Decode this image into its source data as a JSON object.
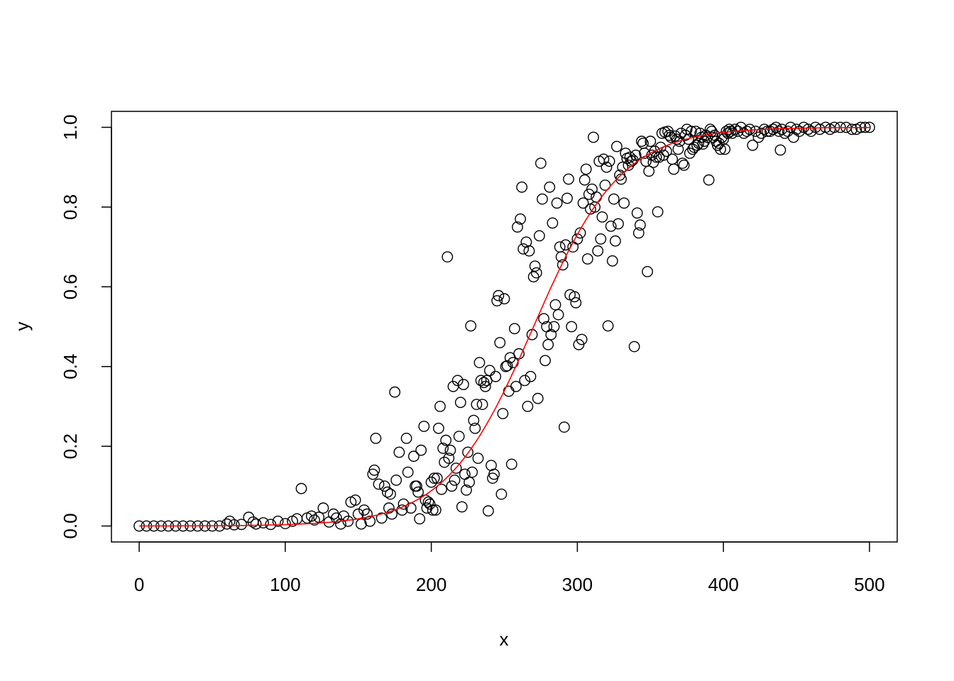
{
  "chart_data": {
    "type": "scatter",
    "title": "",
    "xlabel": "x",
    "ylabel": "y",
    "xlim": [
      -19,
      519
    ],
    "ylim": [
      -0.04,
      1.04
    ],
    "x_ticks": [
      0,
      100,
      200,
      300,
      400,
      500
    ],
    "x_tick_labels": [
      "0",
      "100",
      "200",
      "300",
      "400",
      "500"
    ],
    "y_ticks": [
      0.0,
      0.2,
      0.4,
      0.6,
      0.8,
      1.0
    ],
    "y_tick_labels": [
      "0.0",
      "0.2",
      "0.4",
      "0.6",
      "0.8",
      "1.0"
    ],
    "grid": false,
    "legend": "none",
    "series": [
      {
        "type": "scatter",
        "marker": "open-circle",
        "color": "#000000",
        "points": [
          [
            0,
            0.0
          ],
          [
            5,
            0.0
          ],
          [
            10,
            0.0
          ],
          [
            15,
            0.0
          ],
          [
            20,
            0.0
          ],
          [
            25,
            0.0
          ],
          [
            30,
            0.0
          ],
          [
            35,
            0.0
          ],
          [
            40,
            0.0
          ],
          [
            45,
            0.0
          ],
          [
            50,
            0.0
          ],
          [
            55,
            0.0
          ],
          [
            60,
            0.005
          ],
          [
            62,
            0.012
          ],
          [
            65,
            0.003
          ],
          [
            70,
            0.004
          ],
          [
            75,
            0.022
          ],
          [
            78,
            0.01
          ],
          [
            80,
            0.005
          ],
          [
            85,
            0.008
          ],
          [
            90,
            0.004
          ],
          [
            95,
            0.012
          ],
          [
            100,
            0.006
          ],
          [
            105,
            0.012
          ],
          [
            108,
            0.018
          ],
          [
            111,
            0.094
          ],
          [
            115,
            0.02
          ],
          [
            118,
            0.025
          ],
          [
            120,
            0.015
          ],
          [
            123,
            0.022
          ],
          [
            126,
            0.045
          ],
          [
            130,
            0.01
          ],
          [
            133,
            0.03
          ],
          [
            135,
            0.02
          ],
          [
            138,
            0.005
          ],
          [
            140,
            0.025
          ],
          [
            143,
            0.012
          ],
          [
            145,
            0.06
          ],
          [
            148,
            0.065
          ],
          [
            150,
            0.03
          ],
          [
            152,
            0.005
          ],
          [
            154,
            0.04
          ],
          [
            156,
            0.03
          ],
          [
            158,
            0.012
          ],
          [
            160,
            0.13
          ],
          [
            161,
            0.14
          ],
          [
            162,
            0.22
          ],
          [
            164,
            0.105
          ],
          [
            166,
            0.02
          ],
          [
            168,
            0.1
          ],
          [
            170,
            0.085
          ],
          [
            171,
            0.045
          ],
          [
            172,
            0.08
          ],
          [
            173,
            0.03
          ],
          [
            175,
            0.336
          ],
          [
            176,
            0.115
          ],
          [
            178,
            0.185
          ],
          [
            180,
            0.04
          ],
          [
            181,
            0.055
          ],
          [
            183,
            0.22
          ],
          [
            184,
            0.135
          ],
          [
            186,
            0.045
          ],
          [
            188,
            0.175
          ],
          [
            189,
            0.1
          ],
          [
            190,
            0.1
          ],
          [
            191,
            0.085
          ],
          [
            192,
            0.018
          ],
          [
            193,
            0.19
          ],
          [
            195,
            0.25
          ],
          [
            196,
            0.065
          ],
          [
            197,
            0.045
          ],
          [
            198,
            0.06
          ],
          [
            199,
            0.055
          ],
          [
            200,
            0.11
          ],
          [
            201,
            0.04
          ],
          [
            202,
            0.12
          ],
          [
            203,
            0.04
          ],
          [
            204,
            0.12
          ],
          [
            205,
            0.245
          ],
          [
            206,
            0.3
          ],
          [
            207,
            0.092
          ],
          [
            208,
            0.195
          ],
          [
            209,
            0.16
          ],
          [
            210,
            0.215
          ],
          [
            211,
            0.675
          ],
          [
            212,
            0.17
          ],
          [
            213,
            0.19
          ],
          [
            214,
            0.1
          ],
          [
            215,
            0.35
          ],
          [
            216,
            0.115
          ],
          [
            217,
            0.145
          ],
          [
            218,
            0.365
          ],
          [
            219,
            0.225
          ],
          [
            220,
            0.31
          ],
          [
            221,
            0.048
          ],
          [
            222,
            0.355
          ],
          [
            223,
            0.13
          ],
          [
            224,
            0.09
          ],
          [
            225,
            0.185
          ],
          [
            226,
            0.11
          ],
          [
            227,
            0.502
          ],
          [
            228,
            0.135
          ],
          [
            229,
            0.265
          ],
          [
            230,
            0.245
          ],
          [
            231,
            0.305
          ],
          [
            232,
            0.17
          ],
          [
            233,
            0.41
          ],
          [
            234,
            0.365
          ],
          [
            235,
            0.305
          ],
          [
            236,
            0.36
          ],
          [
            237,
            0.35
          ],
          [
            238,
            0.365
          ],
          [
            239,
            0.038
          ],
          [
            240,
            0.39
          ],
          [
            241,
            0.152
          ],
          [
            242,
            0.12
          ],
          [
            243,
            0.13
          ],
          [
            244,
            0.375
          ],
          [
            245,
            0.565
          ],
          [
            246,
            0.578
          ],
          [
            247,
            0.46
          ],
          [
            248,
            0.08
          ],
          [
            249,
            0.282
          ],
          [
            250,
            0.57
          ],
          [
            251,
            0.4
          ],
          [
            252,
            0.402
          ],
          [
            253,
            0.338
          ],
          [
            254,
            0.422
          ],
          [
            255,
            0.155
          ],
          [
            256,
            0.41
          ],
          [
            257,
            0.495
          ],
          [
            258,
            0.35
          ],
          [
            259,
            0.75
          ],
          [
            260,
            0.432
          ],
          [
            261,
            0.77
          ],
          [
            262,
            0.85
          ],
          [
            263,
            0.695
          ],
          [
            264,
            0.365
          ],
          [
            265,
            0.712
          ],
          [
            266,
            0.3
          ],
          [
            267,
            0.69
          ],
          [
            268,
            0.375
          ],
          [
            269,
            0.48
          ],
          [
            270,
            0.625
          ],
          [
            271,
            0.652
          ],
          [
            272,
            0.635
          ],
          [
            273,
            0.32
          ],
          [
            274,
            0.728
          ],
          [
            275,
            0.91
          ],
          [
            276,
            0.82
          ],
          [
            277,
            0.52
          ],
          [
            278,
            0.415
          ],
          [
            279,
            0.5
          ],
          [
            280,
            0.455
          ],
          [
            281,
            0.85
          ],
          [
            282,
            0.48
          ],
          [
            283,
            0.76
          ],
          [
            284,
            0.5
          ],
          [
            285,
            0.555
          ],
          [
            286,
            0.81
          ],
          [
            287,
            0.53
          ],
          [
            288,
            0.7
          ],
          [
            289,
            0.675
          ],
          [
            290,
            0.655
          ],
          [
            291,
            0.248
          ],
          [
            292,
            0.705
          ],
          [
            293,
            0.822
          ],
          [
            294,
            0.87
          ],
          [
            295,
            0.58
          ],
          [
            296,
            0.5
          ],
          [
            297,
            0.7
          ],
          [
            298,
            0.575
          ],
          [
            299,
            0.56
          ],
          [
            300,
            0.72
          ],
          [
            301,
            0.455
          ],
          [
            302,
            0.735
          ],
          [
            303,
            0.468
          ],
          [
            304,
            0.81
          ],
          [
            305,
            0.868
          ],
          [
            306,
            0.895
          ],
          [
            307,
            0.67
          ],
          [
            308,
            0.832
          ],
          [
            309,
            0.795
          ],
          [
            310,
            0.845
          ],
          [
            311,
            0.975
          ],
          [
            312,
            0.8
          ],
          [
            313,
            0.825
          ],
          [
            314,
            0.69
          ],
          [
            315,
            0.915
          ],
          [
            316,
            0.72
          ],
          [
            317,
            0.775
          ],
          [
            318,
            0.92
          ],
          [
            319,
            0.855
          ],
          [
            320,
            0.9
          ],
          [
            321,
            0.502
          ],
          [
            322,
            0.915
          ],
          [
            323,
            0.752
          ],
          [
            324,
            0.665
          ],
          [
            325,
            0.82
          ],
          [
            326,
            0.715
          ],
          [
            327,
            0.952
          ],
          [
            328,
            0.758
          ],
          [
            329,
            0.88
          ],
          [
            330,
            0.87
          ],
          [
            331,
            0.9
          ],
          [
            332,
            0.81
          ],
          [
            333,
            0.935
          ],
          [
            334,
            0.922
          ],
          [
            335,
            0.905
          ],
          [
            336,
            0.925
          ],
          [
            337,
            0.915
          ],
          [
            338,
            0.918
          ],
          [
            339,
            0.45
          ],
          [
            340,
            0.93
          ],
          [
            341,
            0.785
          ],
          [
            342,
            0.735
          ],
          [
            343,
            0.755
          ],
          [
            344,
            0.965
          ],
          [
            345,
            0.96
          ],
          [
            346,
            0.935
          ],
          [
            347,
            0.915
          ],
          [
            348,
            0.638
          ],
          [
            349,
            0.89
          ],
          [
            350,
            0.965
          ],
          [
            351,
            0.93
          ],
          [
            352,
            0.912
          ],
          [
            353,
            0.94
          ],
          [
            354,
            0.925
          ],
          [
            355,
            0.788
          ],
          [
            356,
            0.925
          ],
          [
            357,
            0.95
          ],
          [
            358,
            0.985
          ],
          [
            359,
            0.93
          ],
          [
            360,
            0.988
          ],
          [
            361,
            0.94
          ],
          [
            362,
            0.99
          ],
          [
            363,
            0.98
          ],
          [
            364,
            0.975
          ],
          [
            365,
            0.92
          ],
          [
            366,
            0.895
          ],
          [
            367,
            0.978
          ],
          [
            368,
            0.97
          ],
          [
            369,
            0.945
          ],
          [
            370,
            0.965
          ],
          [
            371,
            0.985
          ],
          [
            372,
            0.91
          ],
          [
            373,
            0.905
          ],
          [
            374,
            0.98
          ],
          [
            375,
            0.995
          ],
          [
            376,
            0.97
          ],
          [
            377,
            0.935
          ],
          [
            378,
            0.99
          ],
          [
            379,
            0.945
          ],
          [
            380,
            0.95
          ],
          [
            381,
            0.99
          ],
          [
            382,
            0.955
          ],
          [
            383,
            0.96
          ],
          [
            384,
            0.985
          ],
          [
            385,
            0.975
          ],
          [
            386,
            0.958
          ],
          [
            387,
            0.965
          ],
          [
            388,
            0.98
          ],
          [
            389,
            0.975
          ],
          [
            390,
            0.868
          ],
          [
            391,
            0.995
          ],
          [
            392,
            0.99
          ],
          [
            393,
            0.975
          ],
          [
            394,
            0.98
          ],
          [
            395,
            0.965
          ],
          [
            396,
            0.955
          ],
          [
            397,
            0.96
          ],
          [
            398,
            0.945
          ],
          [
            399,
            0.975
          ],
          [
            400,
            0.97
          ],
          [
            401,
            0.945
          ],
          [
            402,
            0.99
          ],
          [
            403,
            0.985
          ],
          [
            404,
            0.995
          ],
          [
            405,
            0.99
          ],
          [
            406,
            0.985
          ],
          [
            408,
            0.995
          ],
          [
            410,
            0.99
          ],
          [
            412,
            1.0
          ],
          [
            414,
            0.985
          ],
          [
            416,
            0.99
          ],
          [
            418,
            0.995
          ],
          [
            420,
            0.955
          ],
          [
            422,
            0.99
          ],
          [
            424,
            0.975
          ],
          [
            426,
            0.985
          ],
          [
            428,
            0.995
          ],
          [
            430,
            0.99
          ],
          [
            432,
            0.99
          ],
          [
            434,
            0.995
          ],
          [
            436,
            1.0
          ],
          [
            438,
            0.99
          ],
          [
            439,
            0.943
          ],
          [
            440,
            0.995
          ],
          [
            442,
            0.985
          ],
          [
            444,
            0.99
          ],
          [
            446,
            1.0
          ],
          [
            448,
            0.975
          ],
          [
            450,
            0.995
          ],
          [
            452,
            0.99
          ],
          [
            455,
            1.0
          ],
          [
            458,
            0.995
          ],
          [
            460,
            0.99
          ],
          [
            463,
            1.0
          ],
          [
            466,
            0.995
          ],
          [
            470,
            1.0
          ],
          [
            473,
            0.995
          ],
          [
            476,
            1.0
          ],
          [
            480,
            1.0
          ],
          [
            484,
            1.0
          ],
          [
            488,
            0.995
          ],
          [
            491,
            0.995
          ],
          [
            494,
            1.0
          ],
          [
            497,
            1.0
          ],
          [
            500,
            1.0
          ]
        ]
      },
      {
        "type": "line",
        "color": "#ff0000",
        "curve": "logistic",
        "midpoint": 270,
        "scale": 30,
        "x_range": [
          0,
          500
        ]
      }
    ]
  }
}
